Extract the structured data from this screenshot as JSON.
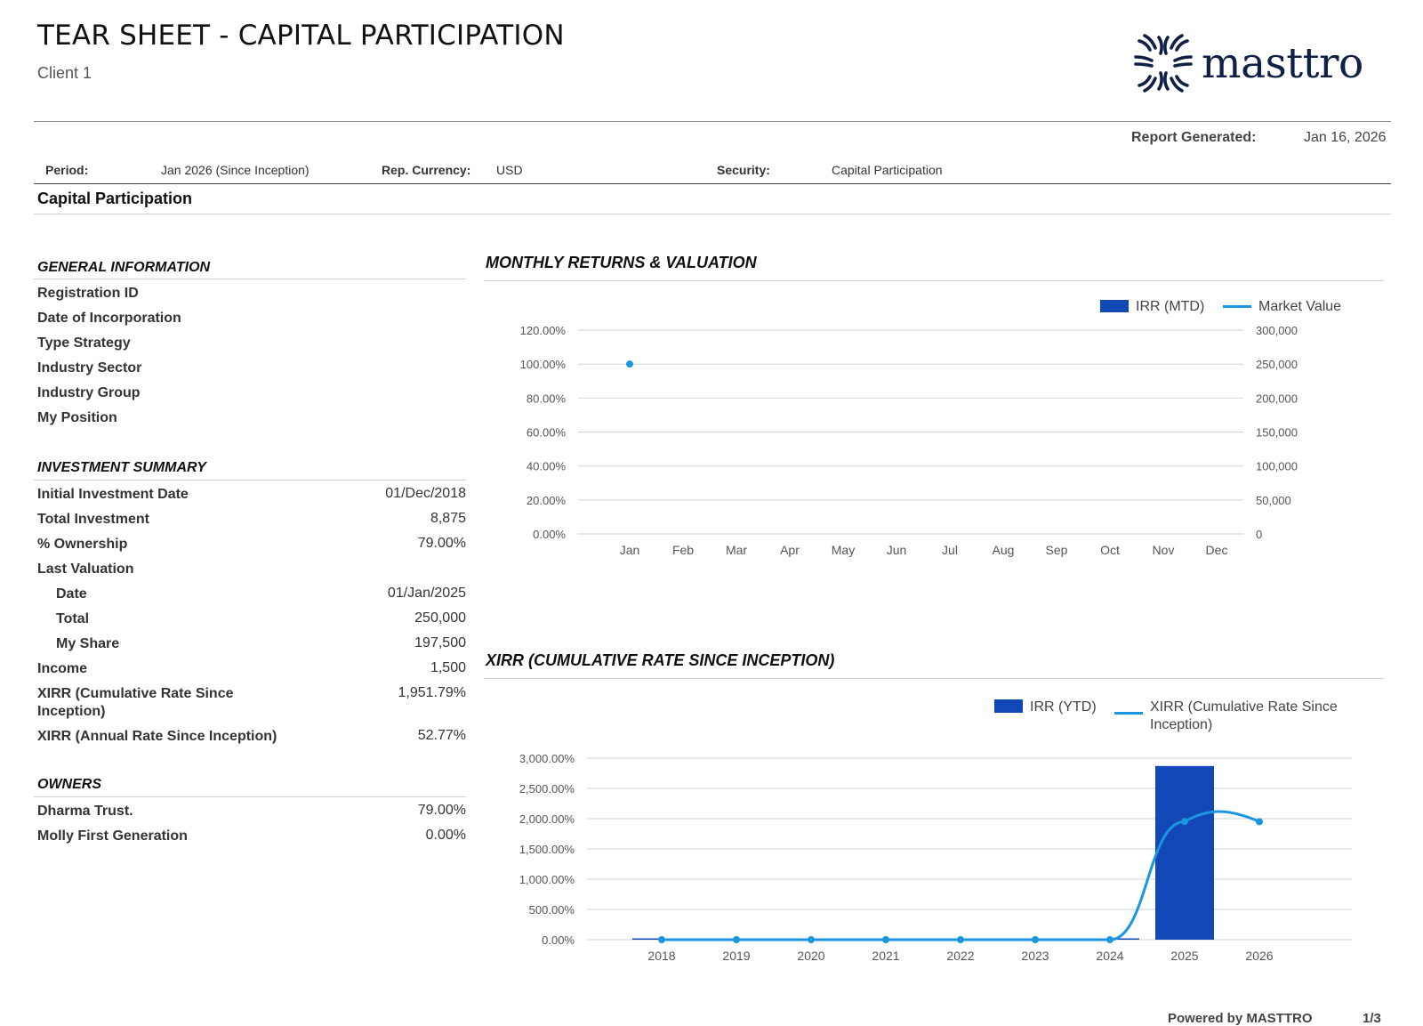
{
  "header": {
    "title": "TEAR SHEET - CAPITAL PARTICIPATION",
    "client": "Client 1",
    "logo_text": "masttro",
    "report_generated_label": "Report Generated:",
    "report_generated_value": "Jan 16, 2026"
  },
  "meta": {
    "period_label": "Period:",
    "period_value": "Jan 2026 (Since Inception)",
    "currency_label": "Rep. Currency:",
    "currency_value": "USD",
    "security_label": "Security:",
    "security_value": "Capital Participation"
  },
  "section_title": "Capital Participation",
  "general_information": {
    "heading": "GENERAL INFORMATION",
    "items": [
      "Registration ID",
      "Date of Incorporation",
      "Type Strategy",
      "Industry Sector",
      "Industry Group",
      "My Position"
    ]
  },
  "investment_summary": {
    "heading": "INVESTMENT SUMMARY",
    "rows": [
      {
        "label": "Initial Investment Date",
        "value": "01/Dec/2018"
      },
      {
        "label": "Total Investment",
        "value": "8,875"
      },
      {
        "label": "% Ownership",
        "value": "79.00%"
      },
      {
        "label": "Last Valuation",
        "value": ""
      },
      {
        "label": "Date",
        "value": "01/Jan/2025"
      },
      {
        "label": "Total",
        "value": "250,000"
      },
      {
        "label": "My Share",
        "value": "197,500"
      },
      {
        "label": "Income",
        "value": "1,500"
      },
      {
        "label": "XIRR (Cumulative Rate Since Inception)",
        "value": "1,951.79%"
      },
      {
        "label": "XIRR (Annual Rate Since Inception)",
        "value": "52.77%"
      }
    ]
  },
  "owners": {
    "heading": "OWNERS",
    "rows": [
      {
        "label": "Dharma Trust.",
        "value": "79.00%"
      },
      {
        "label": "Molly First Generation",
        "value": "0.00%"
      }
    ]
  },
  "colors": {
    "bar": "#1247b8",
    "line": "#1a96e0",
    "grid": "#d9d9d9",
    "axis_text": "#555555"
  },
  "footer": {
    "powered_by": "Powered by MASTTRO",
    "page": "1/3"
  },
  "chart_data": [
    {
      "type": "bar",
      "title": "MONTHLY RETURNS & VALUATION",
      "categories": [
        "Jan",
        "Feb",
        "Mar",
        "Apr",
        "May",
        "Jun",
        "Jul",
        "Aug",
        "Sep",
        "Oct",
        "Nov",
        "Dec"
      ],
      "yticks_left": [
        "120.00%",
        "100.00%",
        "80.00%",
        "60.00%",
        "40.00%",
        "20.00%",
        "0.00%"
      ],
      "yticks_right": [
        "300,000",
        "250,000",
        "200,000",
        "150,000",
        "100,000",
        "50,000",
        "0"
      ],
      "ylim_left": [
        0,
        120
      ],
      "ylim_right": [
        0,
        300000
      ],
      "legend": [
        "IRR (MTD)",
        "Market Value"
      ],
      "series": [
        {
          "name": "IRR (MTD)",
          "axis": "left",
          "values": [
            null,
            null,
            null,
            null,
            null,
            null,
            null,
            null,
            null,
            null,
            null,
            null
          ]
        },
        {
          "name": "Market Value",
          "axis": "right",
          "values": [
            250000,
            null,
            null,
            null,
            null,
            null,
            null,
            null,
            null,
            null,
            null,
            null
          ]
        }
      ]
    },
    {
      "type": "bar",
      "title": "XIRR (CUMULATIVE RATE SINCE INCEPTION)",
      "categories": [
        "2018",
        "2019",
        "2020",
        "2021",
        "2022",
        "2023",
        "2024",
        "2025",
        "2026"
      ],
      "yticks": [
        "3,000.00%",
        "2,500.00%",
        "2,000.00%",
        "1,500.00%",
        "1,000.00%",
        "500.00%",
        "0.00%"
      ],
      "ylim": [
        0,
        3000
      ],
      "legend": [
        "IRR (YTD)",
        "XIRR (Cumulative Rate Since Inception)"
      ],
      "series": [
        {
          "name": "IRR (YTD)",
          "values": [
            0,
            0,
            0,
            0,
            0,
            0,
            0,
            2870,
            null
          ]
        },
        {
          "name": "XIRR (Cumulative Rate Since Inception)",
          "values": [
            0,
            0,
            0,
            0,
            0,
            0,
            0,
            1951.79,
            1950
          ]
        }
      ]
    }
  ]
}
